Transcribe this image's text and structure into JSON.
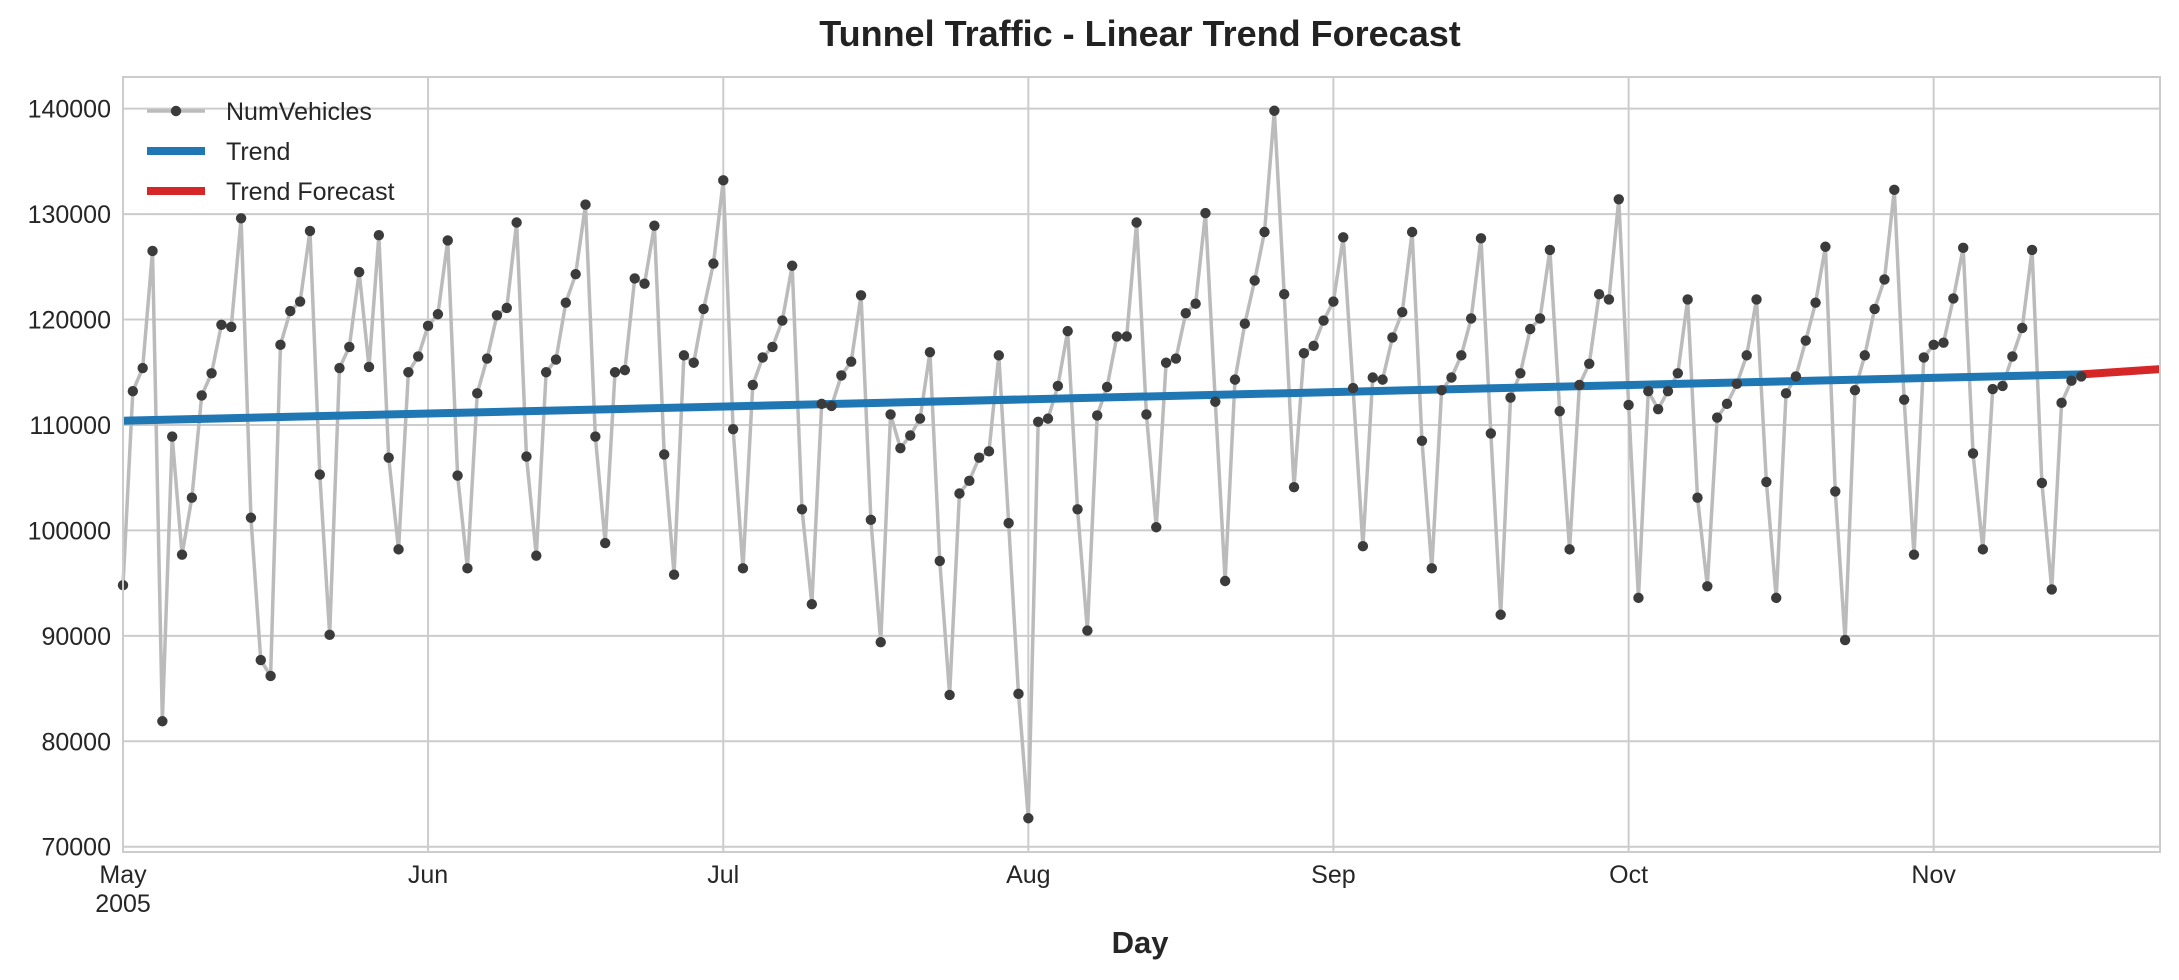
{
  "chart_data": {
    "type": "line",
    "title": "Tunnel Traffic - Linear Trend Forecast",
    "xlabel": "Day",
    "ylabel": "",
    "x_start": "2005-05-01",
    "xlim": [
      "2005-05-01",
      "2005-11-24"
    ],
    "ylim": [
      69500,
      143000
    ],
    "grid": true,
    "legend_position": "top-left",
    "x_ticks": [
      {
        "date": "2005-05-01",
        "label": "May",
        "sublabel": "2005"
      },
      {
        "date": "2005-06-01",
        "label": "Jun",
        "sublabel": ""
      },
      {
        "date": "2005-07-01",
        "label": "Jul",
        "sublabel": ""
      },
      {
        "date": "2005-08-01",
        "label": "Aug",
        "sublabel": ""
      },
      {
        "date": "2005-09-01",
        "label": "Sep",
        "sublabel": ""
      },
      {
        "date": "2005-10-01",
        "label": "Oct",
        "sublabel": ""
      },
      {
        "date": "2005-11-01",
        "label": "Nov",
        "sublabel": ""
      }
    ],
    "y_ticks": [
      {
        "value": 70000,
        "label": "70000"
      },
      {
        "value": 80000,
        "label": "80000"
      },
      {
        "value": 90000,
        "label": "90000"
      },
      {
        "value": 100000,
        "label": "100000"
      },
      {
        "value": 110000,
        "label": "110000"
      },
      {
        "value": 120000,
        "label": "120000"
      },
      {
        "value": 130000,
        "label": "130000"
      },
      {
        "value": 140000,
        "label": "140000"
      }
    ],
    "colors": {
      "NumVehicles_line": "#bbbbbb",
      "NumVehicles_marker": "#3b3b3b",
      "Trend": "#1f77b4",
      "Trend Forecast": "#d62728",
      "grid": "#cccccc",
      "frame": "#cccccc"
    },
    "series": [
      {
        "name": "NumVehicles",
        "style": "line-markers",
        "values": [
          94800,
          113200,
          115400,
          126500,
          81900,
          108900,
          97700,
          103100,
          112800,
          114900,
          119500,
          119300,
          129600,
          101200,
          87700,
          86200,
          117600,
          120800,
          121700,
          128400,
          105300,
          90100,
          115400,
          117400,
          124500,
          115500,
          128000,
          106900,
          98200,
          115000,
          116500,
          119400,
          120500,
          127500,
          105200,
          96400,
          113000,
          116300,
          120400,
          121100,
          129200,
          107000,
          97600,
          115000,
          116200,
          121600,
          124300,
          130900,
          108900,
          98800,
          115000,
          115200,
          123900,
          123400,
          128900,
          107200,
          95800,
          116600,
          115900,
          121000,
          125300,
          133200,
          109600,
          96400,
          113800,
          116400,
          117400,
          119900,
          125100,
          102000,
          93000,
          112000,
          111800,
          114700,
          116000,
          122300,
          101000,
          89400,
          111000,
          107800,
          109000,
          110600,
          116900,
          97100,
          84400,
          103500,
          104700,
          106900,
          107500,
          116600,
          100700,
          84500,
          72700,
          110300,
          110600,
          113700,
          118900,
          102000,
          90500,
          110900,
          113600,
          118400,
          118400,
          129200,
          111000,
          100300,
          115900,
          116300,
          120600,
          121500,
          130100,
          112200,
          95200,
          114300,
          119600,
          123700,
          128300,
          139800,
          122400,
          104100,
          116800,
          117500,
          119900,
          121700,
          127800,
          113500,
          98500,
          114500,
          114300,
          118300,
          120700,
          128300,
          108500,
          96400,
          113300,
          114500,
          116600,
          120100,
          127700,
          109200,
          92000,
          112600,
          114900,
          119100,
          120100,
          126600,
          111300,
          98200,
          113800,
          115800,
          122400,
          121900,
          131400,
          111900,
          93600,
          113200,
          111500,
          113200,
          114900,
          121900,
          103100,
          94700,
          110700,
          112000,
          113900,
          116600,
          121900,
          104600,
          93600,
          113000,
          114600,
          118000,
          121600,
          126900,
          103700,
          89600,
          113300,
          116600,
          121000,
          123800,
          132300,
          112400,
          97700,
          116400,
          117600,
          117800,
          122000,
          126800,
          107300,
          98200,
          113400,
          113700,
          116500,
          119200,
          126600,
          104500,
          94400,
          112100,
          114200,
          114600
        ]
      },
      {
        "name": "Trend",
        "style": "line",
        "x": [
          "2005-05-01",
          "2005-11-16"
        ],
        "values": [
          110400,
          114800
        ]
      },
      {
        "name": "Trend Forecast",
        "style": "line",
        "x": [
          "2005-11-16",
          "2005-11-24"
        ],
        "values": [
          114800,
          115300
        ]
      }
    ]
  }
}
